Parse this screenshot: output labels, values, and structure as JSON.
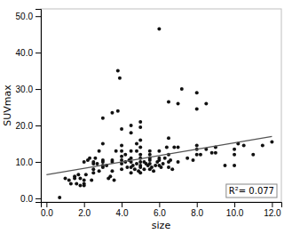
{
  "chart_data": {
    "type": "scatter",
    "xlabel": "size",
    "ylabel": "SUVmax",
    "annotation": "R²= 0.077",
    "grid": false,
    "xlim": [
      -0.3,
      12.5
    ],
    "ylim": [
      -1.0,
      52.0
    ],
    "xticks": [
      {
        "value": 0.0,
        "label": "0.0"
      },
      {
        "value": 2.0,
        "label": "2.0"
      },
      {
        "value": 4.0,
        "label": "4.0"
      },
      {
        "value": 6.0,
        "label": "6.0"
      },
      {
        "value": 8.0,
        "label": "8.0"
      },
      {
        "value": 10.0,
        "label": "10.0"
      },
      {
        "value": 12.0,
        "label": "12.0"
      }
    ],
    "yticks": [
      {
        "value": 0.0,
        "label": "0.0"
      },
      {
        "value": 10.0,
        "label": "10.0"
      },
      {
        "value": 20.0,
        "label": "20.0"
      },
      {
        "value": 30.0,
        "label": "30.0"
      },
      {
        "value": 40.0,
        "label": "40.0"
      },
      {
        "value": 50.0,
        "label": "50.0"
      }
    ],
    "series": [
      {
        "type": "scatter",
        "color": "#111111",
        "x": [
          0.7,
          1.0,
          1.2,
          1.3,
          1.5,
          1.5,
          1.6,
          1.7,
          1.8,
          1.8,
          2.0,
          2.0,
          2.0,
          2.0,
          2.1,
          2.2,
          2.3,
          2.4,
          2.5,
          2.5,
          2.5,
          2.5,
          2.6,
          2.7,
          2.8,
          2.8,
          3.0,
          3.0,
          3.0,
          3.0,
          3.0,
          3.0,
          3.2,
          3.3,
          3.4,
          3.5,
          3.5,
          3.5,
          3.5,
          3.6,
          3.7,
          3.8,
          3.8,
          3.9,
          4.0,
          4.0,
          4.0,
          4.0,
          4.0,
          4.0,
          4.0,
          4.2,
          4.2,
          4.3,
          4.4,
          4.5,
          4.5,
          4.5,
          4.5,
          4.5,
          4.5,
          4.5,
          4.6,
          4.7,
          4.8,
          4.8,
          4.8,
          4.9,
          5.0,
          5.0,
          5.0,
          5.0,
          5.0,
          5.0,
          5.0,
          5.0,
          5.0,
          5.0,
          5.2,
          5.2,
          5.3,
          5.4,
          5.5,
          5.5,
          5.5,
          5.5,
          5.5,
          5.5,
          5.6,
          5.7,
          5.8,
          5.9,
          6.0,
          6.0,
          6.0,
          6.0,
          6.0,
          6.1,
          6.2,
          6.3,
          6.4,
          6.5,
          6.5,
          6.5,
          6.5,
          6.5,
          6.6,
          6.7,
          6.8,
          7.0,
          7.0,
          7.0,
          7.2,
          7.5,
          7.8,
          8.0,
          8.0,
          8.0,
          8.0,
          8.0,
          8.2,
          8.5,
          8.5,
          8.8,
          9.0,
          9.0,
          9.5,
          10.0,
          10.0,
          10.0,
          10.2,
          10.5,
          11.0,
          11.5,
          12.0
        ],
        "values": [
          0.2,
          5.5,
          5.0,
          4.0,
          5.5,
          6.0,
          4.0,
          6.5,
          5.5,
          3.5,
          4.0,
          3.5,
          5.0,
          10.0,
          6.5,
          10.5,
          11.0,
          5.0,
          7.0,
          8.0,
          9.5,
          10.0,
          11.0,
          9.5,
          7.5,
          13.0,
          9.0,
          10.0,
          8.5,
          15.0,
          22.0,
          10.5,
          9.0,
          5.5,
          6.0,
          7.5,
          10.0,
          10.5,
          23.5,
          5.0,
          13.0,
          24.0,
          35.0,
          33.0,
          8.0,
          9.5,
          10.5,
          11.5,
          13.0,
          14.5,
          19.0,
          10.0,
          12.0,
          8.5,
          10.5,
          7.0,
          8.5,
          10.0,
          11.0,
          13.0,
          18.0,
          20.0,
          9.0,
          8.0,
          9.5,
          13.0,
          15.0,
          7.5,
          7.0,
          8.5,
          9.0,
          10.0,
          11.0,
          12.0,
          14.0,
          16.0,
          19.5,
          21.0,
          8.0,
          10.0,
          9.5,
          9.0,
          8.0,
          9.5,
          10.5,
          11.0,
          12.0,
          13.0,
          8.5,
          7.5,
          9.0,
          10.0,
          9.0,
          10.5,
          11.0,
          13.0,
          46.5,
          8.5,
          9.5,
          11.0,
          14.0,
          8.5,
          10.0,
          12.0,
          16.5,
          26.5,
          10.5,
          8.0,
          14.0,
          10.0,
          14.0,
          26.0,
          30.0,
          11.0,
          10.5,
          12.0,
          13.5,
          14.5,
          24.5,
          29.0,
          12.0,
          13.5,
          26.0,
          12.5,
          14.0,
          12.5,
          9.0,
          13.5,
          12.0,
          9.0,
          15.0,
          14.5,
          12.0,
          14.5,
          15.5
        ]
      },
      {
        "type": "line",
        "color": "#555555",
        "x": [
          0.0,
          12.0
        ],
        "values": [
          6.5,
          17.0
        ]
      }
    ]
  }
}
